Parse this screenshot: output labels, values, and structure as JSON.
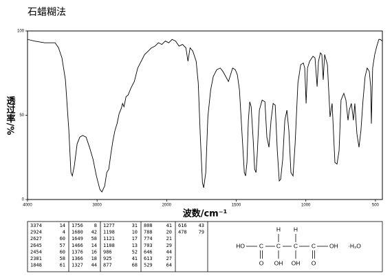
{
  "chart_data": {
    "type": "line",
    "title": "石蜡糊法",
    "x_label": "波数/cm⁻¹",
    "y_label": "透过率/%",
    "xlim": [
      4000,
      450
    ],
    "ylim": [
      0,
      100
    ],
    "x_scale": {
      "break": 2000,
      "factor": 2
    },
    "xticks": [
      4000,
      3000,
      2000,
      1500,
      1000,
      500
    ],
    "yticks": [
      0,
      50,
      100
    ],
    "color": "#000000",
    "x": [
      4000,
      3901,
      3752,
      3653,
      3604,
      3554,
      3505,
      3455,
      3406,
      3376,
      3356,
      3327,
      3287,
      3248,
      3208,
      3158,
      3109,
      3059,
      3010,
      2960,
      2931,
      2891,
      2861,
      2832,
      2802,
      2772,
      2743,
      2713,
      2683,
      2653,
      2634,
      2614,
      2584,
      2554,
      2515,
      2465,
      2416,
      2366,
      2317,
      2267,
      2218,
      2168,
      2119,
      2069,
      2020,
      1985,
      1961,
      1936,
      1911,
      1886,
      1862,
      1847,
      1832,
      1812,
      1788,
      1773,
      1758,
      1743,
      1734,
      1719,
      1704,
      1684,
      1665,
      1640,
      1615,
      1596,
      1576,
      1556,
      1541,
      1526,
      1507,
      1492,
      1477,
      1457,
      1442,
      1433,
      1423,
      1413,
      1403,
      1393,
      1378,
      1368,
      1358,
      1349,
      1334,
      1314,
      1294,
      1280,
      1265,
      1250,
      1235,
      1220,
      1205,
      1191,
      1181,
      1166,
      1151,
      1136,
      1122,
      1107,
      1092,
      1077,
      1057,
      1037,
      1018,
      1008,
      998,
      988,
      973,
      949,
      934,
      919,
      909,
      895,
      885,
      875,
      865,
      845,
      826,
      811,
      791,
      776,
      761,
      747,
      727,
      712,
      697,
      688,
      673,
      658,
      648,
      633,
      618,
      604,
      589,
      574,
      559,
      544,
      534,
      529,
      520,
      505,
      490,
      475,
      465,
      450
    ],
    "values": [
      95,
      94,
      93,
      93,
      93,
      90,
      84,
      71,
      41,
      16,
      14,
      20,
      33,
      37,
      38,
      37,
      31,
      24,
      14,
      6,
      4.5,
      8,
      16,
      18,
      27,
      35,
      41,
      45,
      51,
      54,
      57,
      55,
      61,
      62,
      66,
      70,
      78,
      82,
      86,
      88,
      90,
      91,
      93,
      92,
      94,
      93,
      95,
      94,
      91,
      92,
      90,
      82,
      90,
      88,
      82,
      69,
      37,
      10,
      7,
      16,
      49,
      65,
      73,
      77,
      78,
      76,
      73,
      70,
      74,
      78,
      77,
      74,
      65,
      37,
      16,
      14,
      22,
      47,
      58,
      55,
      35,
      18,
      16,
      27,
      53,
      59,
      58,
      37,
      31,
      47,
      57,
      56,
      29,
      11,
      12,
      24,
      47,
      53,
      41,
      16,
      14,
      33,
      69,
      80,
      81,
      78,
      57,
      78,
      82,
      85,
      84,
      67,
      82,
      87,
      86,
      71,
      86,
      80,
      49,
      57,
      22,
      21,
      29,
      59,
      63,
      59,
      47,
      53,
      57,
      47,
      57,
      39,
      31,
      41,
      59,
      73,
      78,
      76,
      67,
      45,
      78,
      86,
      91,
      95,
      95,
      94
    ]
  },
  "peak_table": [
    [
      [
        3374,
        14
      ],
      [
        2924,
        4
      ],
      [
        2627,
        60
      ],
      [
        2645,
        57
      ],
      [
        2454,
        60
      ],
      [
        2381,
        58
      ],
      [
        1848,
        61
      ]
    ],
    [
      [
        1756,
        8
      ],
      [
        1680,
        42
      ],
      [
        1649,
        58
      ],
      [
        1466,
        14
      ],
      [
        1376,
        16
      ],
      [
        1366,
        18
      ],
      [
        1327,
        44
      ]
    ],
    [
      [
        1277,
        31
      ],
      [
        1198,
        10
      ],
      [
        1121,
        17
      ],
      [
        1108,
        13
      ],
      [
        986,
        52
      ],
      [
        925,
        41
      ],
      [
        877,
        68
      ]
    ],
    [
      [
        808,
        41
      ],
      [
        788,
        20
      ],
      [
        774,
        21
      ],
      [
        703,
        29
      ],
      [
        646,
        44
      ],
      [
        613,
        27
      ],
      [
        529,
        64
      ]
    ],
    [
      [
        616,
        43
      ],
      [
        478,
        79
      ]
    ]
  ],
  "structure": {
    "left": "HO",
    "carbons": [
      "C",
      "C",
      "C",
      "C"
    ],
    "right": "OH",
    "top": [
      "H",
      "H"
    ],
    "bottom": [
      "O",
      "OH",
      "OH",
      "O"
    ],
    "hydrate": "·H₂O"
  }
}
